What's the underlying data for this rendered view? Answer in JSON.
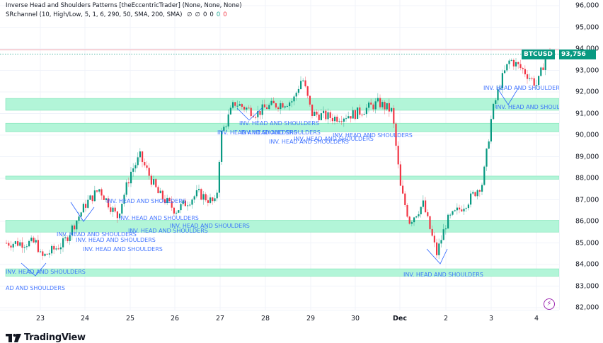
{
  "legend": {
    "indicator1": "Inverse Head and Shoulders Patterns [theEccentricTrader] (None, None, None)",
    "indicator2": "SRchannel (10, High/Low, 5, 1, 6, 290, 50, SMA, 200, SMA)",
    "indicator2_values": [
      "∅",
      "∅",
      "0",
      "0",
      "0",
      "0"
    ],
    "indicator2_value_colors": [
      "#131722",
      "#131722",
      "#131722",
      "#131722",
      "#22ab94",
      "#f23645"
    ]
  },
  "symbol": {
    "ticker": "BTCUSD",
    "last_price": "93,756",
    "color": "#089981"
  },
  "colors": {
    "up": "#089981",
    "down": "#f23645",
    "zone_fill": "#b2f5d8",
    "zone_border": "#7fe3b6",
    "pattern": "#2962ff",
    "resistance_line": "#f7b6bd",
    "last_price_line": "#089981",
    "grid": "#f0f3fa"
  },
  "footer": {
    "brand": "TradingView"
  },
  "chart_data": {
    "type": "candlestick",
    "title": "BTCUSD",
    "xlabel": "",
    "ylabel": "",
    "ylim": [
      81800,
      96100
    ],
    "grid": true,
    "price_axis_ticks": [
      "96,000",
      "95,000",
      "94,000",
      "93,000",
      "92,000",
      "91,000",
      "90,000",
      "89,000",
      "88,000",
      "87,000",
      "86,000",
      "85,000",
      "84,000",
      "83,000",
      "82,000"
    ],
    "time_axis_ticks": [
      "23",
      "24",
      "25",
      "26",
      "27",
      "28",
      "29",
      "30",
      "Dec",
      "2",
      "3",
      "4"
    ],
    "last_price": 93756,
    "resistance_line": 93950,
    "sr_zones": [
      {
        "low": 91150,
        "high": 91700
      },
      {
        "low": 90150,
        "high": 90550
      },
      {
        "low": 87950,
        "high": 88100
      },
      {
        "low": 85500,
        "high": 86050
      },
      {
        "low": 83450,
        "high": 83800
      }
    ],
    "approx_close_path": [
      {
        "date": "22 late",
        "price": 85000
      },
      {
        "date": "23",
        "price": 84300
      },
      {
        "date": "23.5",
        "price": 85000
      },
      {
        "date": "24",
        "price": 86800
      },
      {
        "date": "24.3",
        "price": 87500
      },
      {
        "date": "24.7",
        "price": 86200
      },
      {
        "date": "25",
        "price": 88300
      },
      {
        "date": "25.2",
        "price": 89000
      },
      {
        "date": "25.6",
        "price": 87300
      },
      {
        "date": "26",
        "price": 86500
      },
      {
        "date": "26.5",
        "price": 87300
      },
      {
        "date": "26.9",
        "price": 86800
      },
      {
        "date": "27",
        "price": 90000
      },
      {
        "date": "27.3",
        "price": 91500
      },
      {
        "date": "27.8",
        "price": 91000
      },
      {
        "date": "28",
        "price": 91300
      },
      {
        "date": "28.6",
        "price": 91600
      },
      {
        "date": "28.8",
        "price": 92700
      },
      {
        "date": "29",
        "price": 91000
      },
      {
        "date": "29.5",
        "price": 90800
      },
      {
        "date": "30",
        "price": 91000
      },
      {
        "date": "30.5",
        "price": 91500
      },
      {
        "date": "30.8",
        "price": 91100
      },
      {
        "date": "Dec 1",
        "price": 87500
      },
      {
        "date": "Dec 1.2",
        "price": 86000
      },
      {
        "date": "Dec 1.5",
        "price": 86800
      },
      {
        "date": "Dec 1.8",
        "price": 84500
      },
      {
        "date": "Dec 2",
        "price": 86000
      },
      {
        "date": "Dec 2.5",
        "price": 87000
      },
      {
        "date": "Dec 2.8",
        "price": 87800
      },
      {
        "date": "Dec 3",
        "price": 91000
      },
      {
        "date": "Dec 3.2",
        "price": 92500
      },
      {
        "date": "Dec 3.4",
        "price": 93500
      },
      {
        "date": "Dec 3.7",
        "price": 93000
      },
      {
        "date": "Dec 4",
        "price": 92300
      },
      {
        "date": "Dec 4.2",
        "price": 93756
      }
    ],
    "annotations": [
      {
        "text": "INV. HEAD AND SHOULDERS",
        "near_date": "22-23",
        "price": 83950
      },
      {
        "text": "AD AND SHOULDERS",
        "near_date": "22",
        "price": 83200
      },
      {
        "text": "INV. HEAD AND SHOULDERS",
        "near_date": "23.4",
        "price": 85650
      },
      {
        "text": "INV. HEAD AND SHOULDERS",
        "near_date": "24",
        "price": 85400
      },
      {
        "text": "INV. HEAD AND SHOULDERS",
        "near_date": "24.3",
        "price": 85000
      },
      {
        "text": "INV. HEAD AND SHOULDERS",
        "near_date": "24.9",
        "price": 86700
      },
      {
        "text": "INV. HEAD AND SHOULDERS",
        "near_date": "25.1",
        "price": 86200
      },
      {
        "text": "INV. HEAD AND SHOULDERS",
        "near_date": "25.2",
        "price": 85700
      },
      {
        "text": "INV. HEAD AND SHOULDERS",
        "near_date": "25.9",
        "price": 85900
      },
      {
        "text": "INV. HEAD AND SHOULDERS",
        "near_date": "27",
        "price": 90100
      },
      {
        "text": "INV. HEAD AND SHOULDERS",
        "near_date": "27.5",
        "price": 90200
      },
      {
        "text": "INV. HEAD AND SHOULDERS",
        "near_date": "28",
        "price": 90600
      },
      {
        "text": "INV. HEAD AND SHOULDERS",
        "near_date": "28.1",
        "price": 89800
      },
      {
        "text": "INV. HEAD AND SHOULDERS",
        "near_date": "29",
        "price": 89900
      },
      {
        "text": "INV. HEAD AND SHOULDERS",
        "near_date": "29.5",
        "price": 90100
      },
      {
        "text": "INV. HEAD AND SHOULDERS",
        "near_date": "Dec 1",
        "price": 83900
      },
      {
        "text": "INV. HEAD AND SHOULDERS",
        "near_date": "Dec 3",
        "price": 92200
      },
      {
        "text": "INV. HEAD AND SHOULDERS",
        "near_date": "Dec 3.1",
        "price": 91300
      }
    ]
  }
}
